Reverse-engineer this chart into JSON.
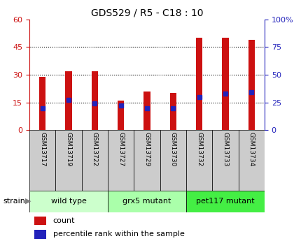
{
  "title": "GDS529 / R5 - C18 : 10",
  "samples": [
    "GSM13717",
    "GSM13719",
    "GSM13722",
    "GSM13727",
    "GSM13729",
    "GSM13730",
    "GSM13732",
    "GSM13733",
    "GSM13734"
  ],
  "count_values": [
    29,
    32,
    32,
    16,
    21,
    20,
    50,
    50,
    49
  ],
  "percentile_values": [
    20,
    27,
    24,
    22,
    20,
    20,
    30,
    33,
    34
  ],
  "ylim_left": [
    0,
    60
  ],
  "ylim_right": [
    0,
    100
  ],
  "yticks_left": [
    0,
    15,
    30,
    45,
    60
  ],
  "yticks_right": [
    0,
    25,
    50,
    75,
    100
  ],
  "ytick_labels_right": [
    "0",
    "25",
    "50",
    "75",
    "100%"
  ],
  "bar_color": "#CC1111",
  "percentile_color": "#2222BB",
  "groups": [
    {
      "label": "wild type",
      "indices": [
        0,
        1,
        2
      ],
      "color": "#CCFFCC"
    },
    {
      "label": "grx5 mutant",
      "indices": [
        3,
        4,
        5
      ],
      "color": "#AAFFAA"
    },
    {
      "label": "pet117 mutant",
      "indices": [
        6,
        7,
        8
      ],
      "color": "#44EE44"
    }
  ],
  "strain_label": "strain",
  "legend_count": "count",
  "legend_percentile": "percentile rank within the sample",
  "bar_width": 0.25,
  "gridline_color": "black",
  "gridline_style": ":",
  "gridline_ticks": [
    15,
    30,
    45
  ],
  "sample_box_color": "#CCCCCC",
  "n_samples": 9
}
